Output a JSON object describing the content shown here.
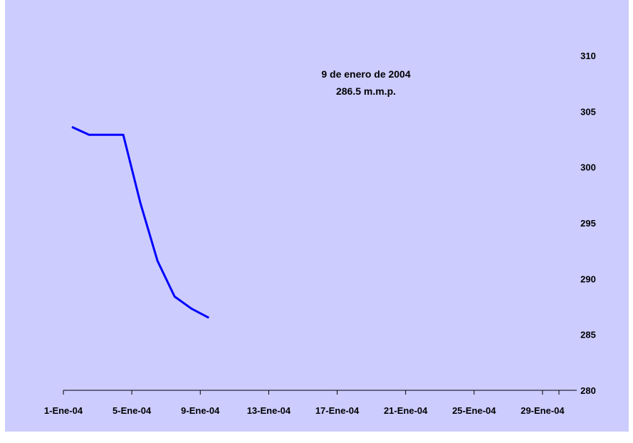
{
  "chart_data": {
    "type": "line",
    "title": "",
    "annotation": {
      "line1": "9 de enero de 2004",
      "line2": "286.5 m.m.p."
    },
    "x": [
      "2004-01-01",
      "2004-01-02",
      "2004-01-03",
      "2004-01-04",
      "2004-01-05",
      "2004-01-06",
      "2004-01-07",
      "2004-01-08",
      "2004-01-09"
    ],
    "series": [
      {
        "values": [
          303.6,
          302.9,
          302.9,
          302.9,
          296.8,
          291.6,
          288.4,
          287.3,
          286.5
        ]
      }
    ],
    "x_tick_labels": [
      "1-Ene-04",
      "5-Ene-04",
      "9-Ene-04",
      "13-Ene-04",
      "17-Ene-04",
      "21-Ene-04",
      "25-Ene-04",
      "29-Ene-04"
    ],
    "x_range": [
      "2004-01-01",
      "2004-01-31"
    ],
    "y_ticks": [
      "280",
      "285",
      "290",
      "295",
      "300",
      "305",
      "310"
    ],
    "ylim": [
      280,
      310
    ],
    "y_axis_side": "right",
    "grid": false,
    "legend": "none",
    "colors": {
      "background": "#ccccff",
      "line": "#0000ff",
      "axis": "#000000"
    }
  }
}
